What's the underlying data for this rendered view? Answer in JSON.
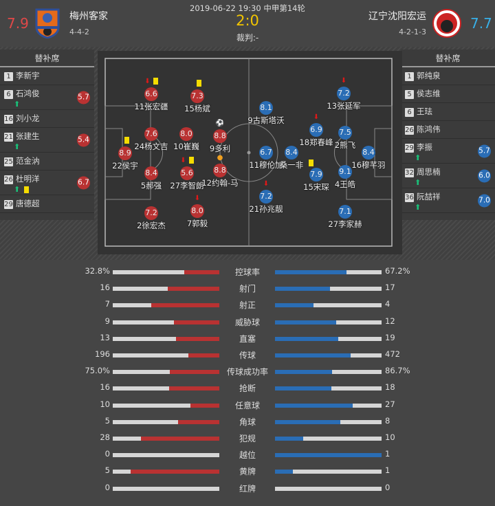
{
  "match": {
    "info": "2019-06-22 19:30 中甲第14轮",
    "score": "2:0",
    "referee": "裁判:-"
  },
  "home": {
    "name": "梅州客家",
    "formation": "4-4-2",
    "rating": "7.9",
    "color": "#b93232",
    "bench_title": "替补席",
    "bench": [
      {
        "num": "1",
        "name": "李新宇"
      },
      {
        "num": "6",
        "name": "石鸿俊",
        "rating": "5.7",
        "sub_in": true
      },
      {
        "num": "16",
        "name": "刘小龙"
      },
      {
        "num": "21",
        "name": "张建生",
        "rating": "5.4",
        "sub_in": true
      },
      {
        "num": "25",
        "name": "范金汭"
      },
      {
        "num": "26",
        "name": "杜明洋",
        "rating": "6.7",
        "sub_in": true,
        "yellow": true
      },
      {
        "num": "29",
        "name": "唐德超"
      }
    ],
    "lineup": [
      {
        "label": "11张宏疆",
        "rating": "6.6",
        "sub_off": true,
        "yellow": true
      },
      {
        "label": "15杨斌",
        "rating": "7.3",
        "yellow": true
      },
      {
        "label": "24杨文吉",
        "rating": "7.6"
      },
      {
        "label": "10崔巍",
        "rating": "8.0"
      },
      {
        "label": "9多利",
        "rating": "8.8",
        "goal": true
      },
      {
        "label": "22侯宇",
        "rating": "8.9",
        "yellow": true
      },
      {
        "label": "5郝强",
        "rating": "8.4"
      },
      {
        "label": "27李智朗",
        "rating": "5.6",
        "sub_off": true,
        "yellow": true
      },
      {
        "label": "12约翰-马",
        "rating": "8.8",
        "assist": true
      },
      {
        "label": "2徐宏杰",
        "rating": "7.2"
      },
      {
        "label": "7郭毅",
        "rating": "8.0",
        "sub_off": true
      }
    ]
  },
  "away": {
    "name": "辽宁沈阳宏运",
    "formation": "4-2-1-3",
    "rating": "7.7",
    "color": "#2a6db5",
    "bench_title": "替补席",
    "bench": [
      {
        "num": "1",
        "name": "郭纯泉"
      },
      {
        "num": "5",
        "name": "侯志维"
      },
      {
        "num": "6",
        "name": "王珐"
      },
      {
        "num": "26",
        "name": "陈鸿伟"
      },
      {
        "num": "29",
        "name": "李振",
        "rating": "5.7",
        "sub_in": true
      },
      {
        "num": "32",
        "name": "周思楠",
        "rating": "6.0",
        "sub_in": true
      },
      {
        "num": "36",
        "name": "阮喆祥",
        "rating": "7.0",
        "sub_in": true
      }
    ],
    "lineup": [
      {
        "label": "9古斯塔沃",
        "rating": "8.1"
      },
      {
        "label": "13张延军",
        "rating": "7.2",
        "sub_off": true
      },
      {
        "label": "18郑春峰",
        "rating": "6.9",
        "sub_off": true
      },
      {
        "label": "2熊飞",
        "rating": "7.5"
      },
      {
        "label": "11穆伦加",
        "rating": "6.7"
      },
      {
        "label": "桑一非",
        "rating": "8.4"
      },
      {
        "label": "16穆芊羽",
        "rating": "8.4"
      },
      {
        "label": "15宋琛",
        "rating": "7.9",
        "yellow": true
      },
      {
        "label": "4王皓",
        "rating": "9.1"
      },
      {
        "label": "21孙兆靓",
        "rating": "7.2",
        "sub_off": true
      },
      {
        "label": "27李家赫",
        "rating": "7.1"
      }
    ]
  },
  "stats": [
    {
      "label": "控球率",
      "home": "32.8%",
      "away": "67.2%",
      "h": 32.8,
      "a": 67.2
    },
    {
      "label": "射门",
      "home": "16",
      "away": "17",
      "h": 16,
      "a": 17
    },
    {
      "label": "射正",
      "home": "7",
      "away": "4",
      "h": 7,
      "a": 4
    },
    {
      "label": "威胁球",
      "home": "9",
      "away": "12",
      "h": 9,
      "a": 12
    },
    {
      "label": "直塞",
      "home": "13",
      "away": "19",
      "h": 13,
      "a": 19
    },
    {
      "label": "传球",
      "home": "196",
      "away": "472",
      "h": 196,
      "a": 472
    },
    {
      "label": "传球成功率",
      "home": "75.0%",
      "away": "86.7%",
      "h": 75.0,
      "a": 86.7
    },
    {
      "label": "抢断",
      "home": "16",
      "away": "18",
      "h": 16,
      "a": 18
    },
    {
      "label": "任意球",
      "home": "10",
      "away": "27",
      "h": 10,
      "a": 27
    },
    {
      "label": "角球",
      "home": "5",
      "away": "8",
      "h": 5,
      "a": 8
    },
    {
      "label": "犯规",
      "home": "28",
      "away": "10",
      "h": 28,
      "a": 10
    },
    {
      "label": "越位",
      "home": "0",
      "away": "1",
      "h": 0,
      "a": 1
    },
    {
      "label": "黄牌",
      "home": "5",
      "away": "1",
      "h": 5,
      "a": 1
    },
    {
      "label": "红牌",
      "home": "0",
      "away": "0",
      "h": 0,
      "a": 0
    }
  ]
}
